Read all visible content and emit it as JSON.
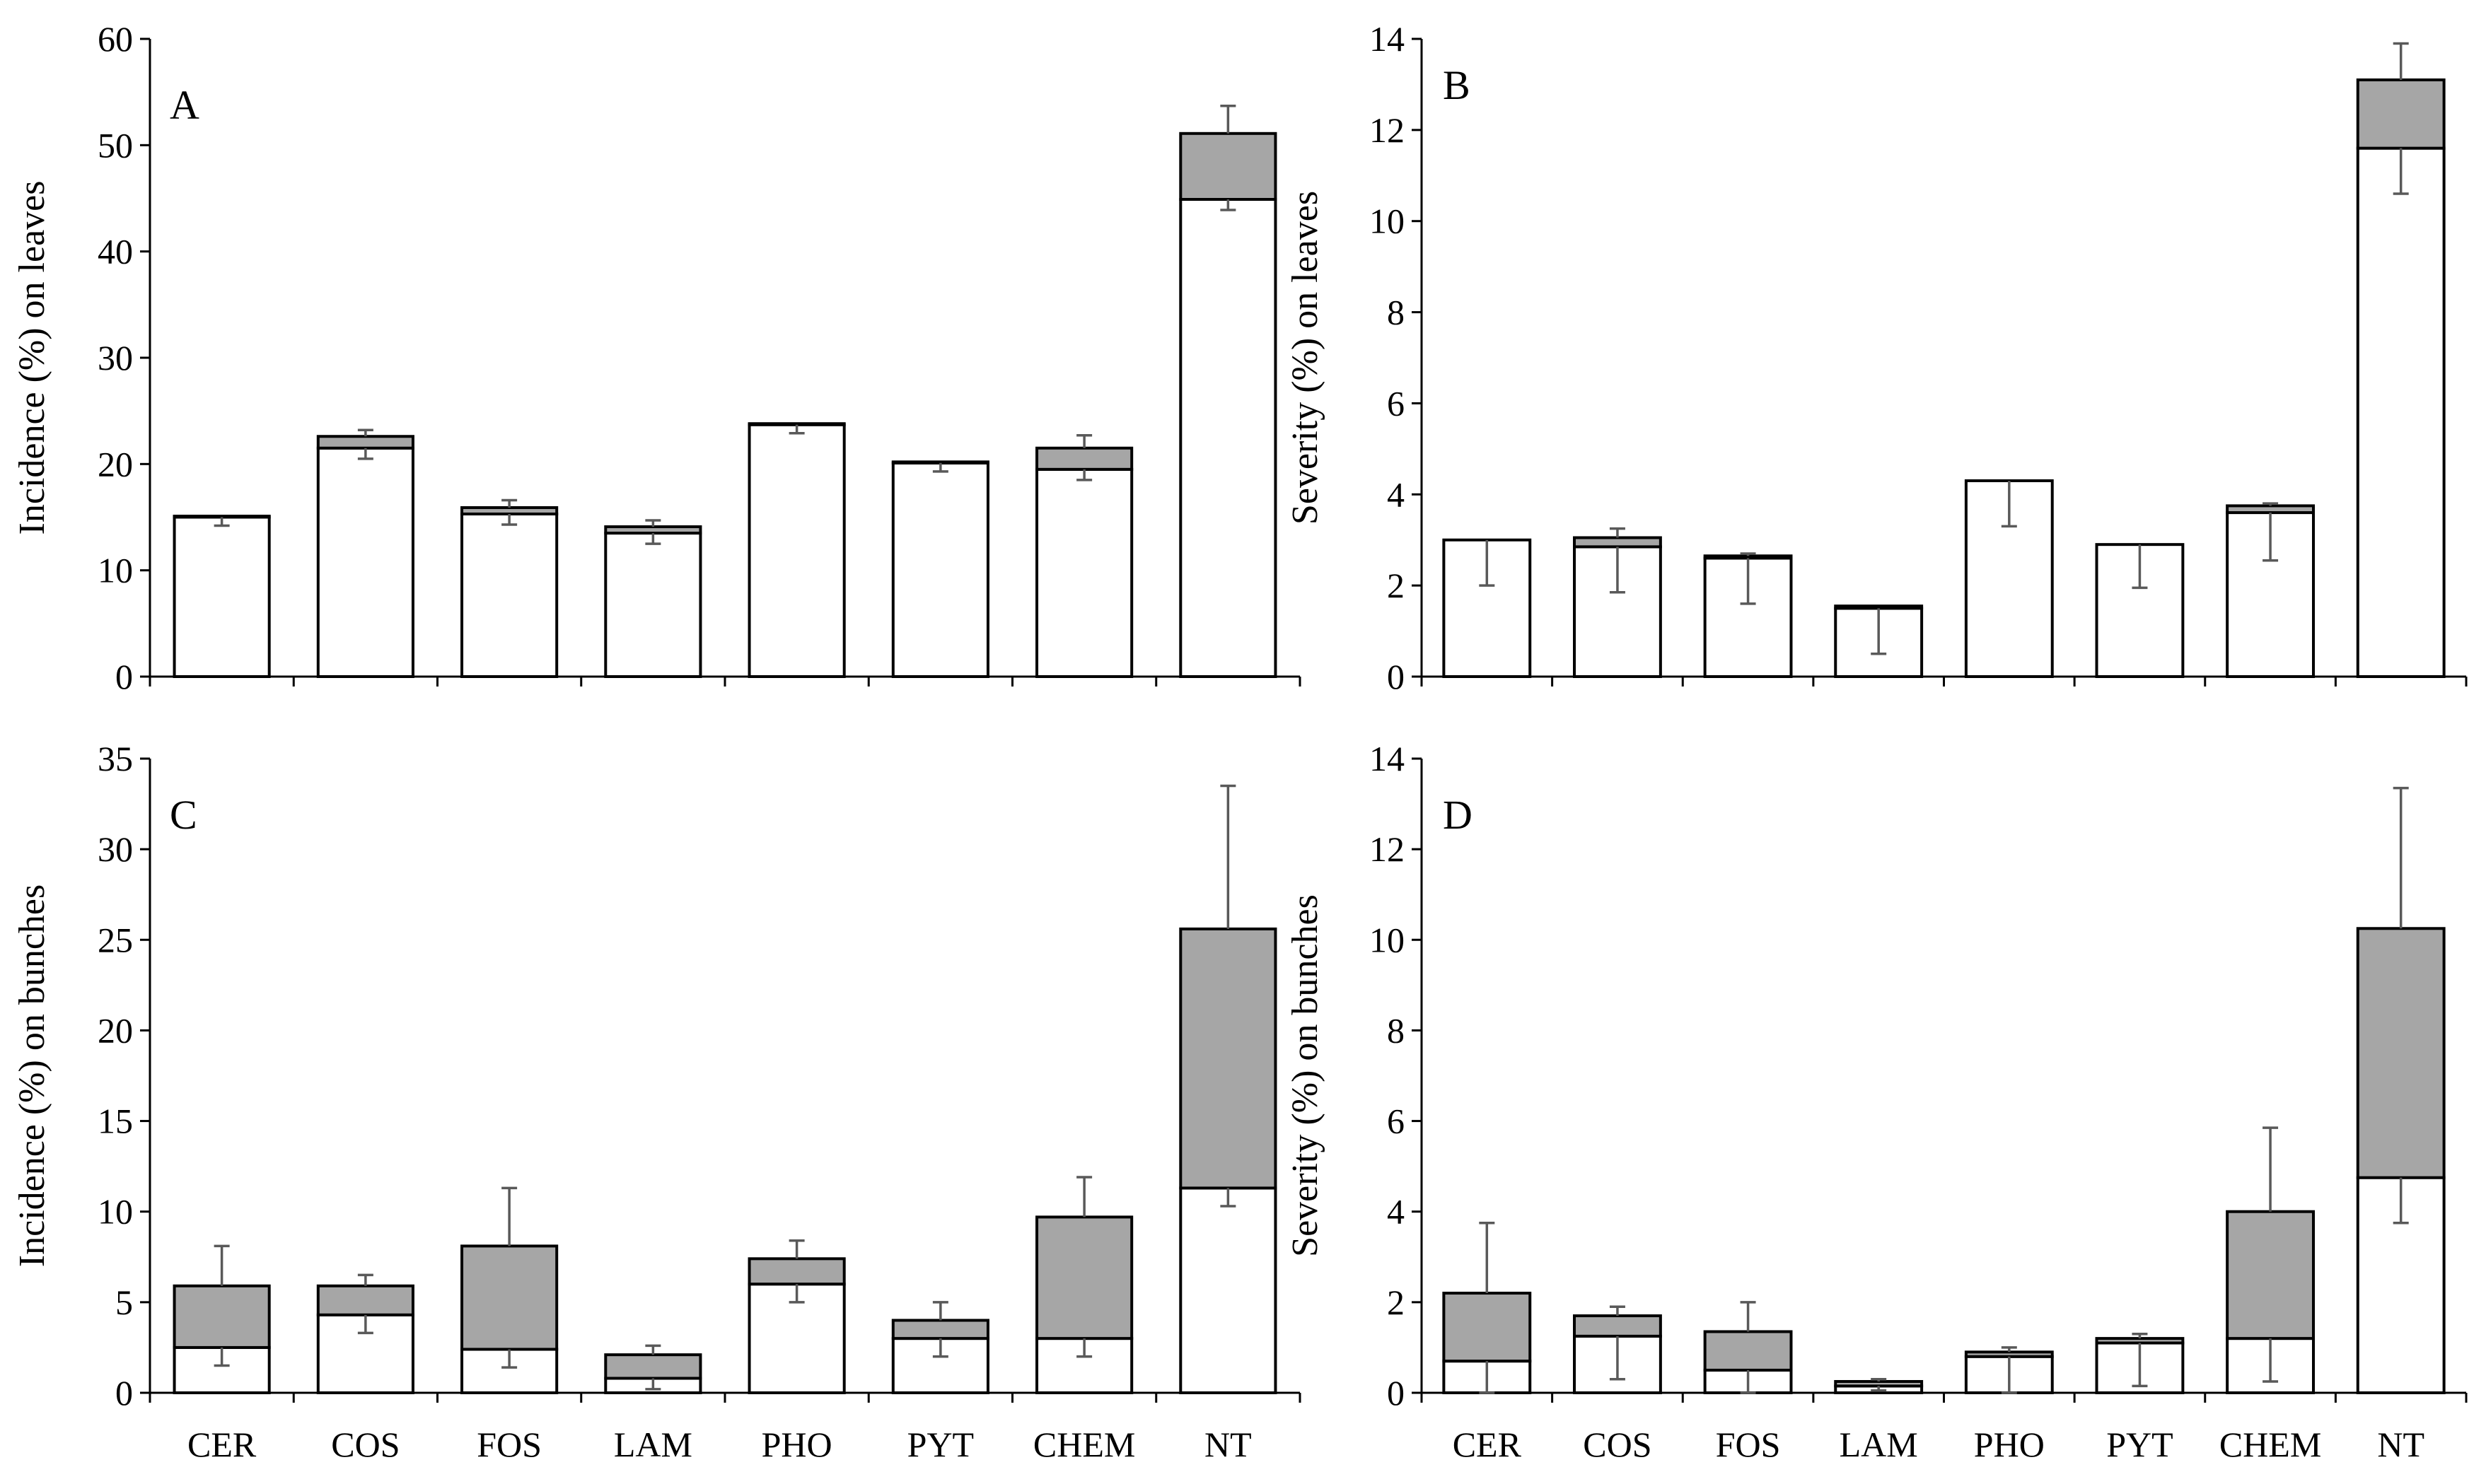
{
  "figure": {
    "colors": {
      "lower_segment": "#ffffff",
      "upper_segment": "#a6a6a6",
      "outline": "#000000",
      "error_bar": "#595959"
    },
    "categories": [
      "CER",
      "COS",
      "FOS",
      "LAM",
      "PHO",
      "PYT",
      "CHEM",
      "NT"
    ]
  },
  "chart_data": [
    {
      "type": "bar",
      "stacked": true,
      "panel": "A",
      "ylabel": "Incidence (%) on leaves",
      "ylim": [
        0,
        60
      ],
      "yticks": [
        0,
        10,
        20,
        30,
        40,
        50,
        60
      ],
      "categories": [
        "CER",
        "COS",
        "FOS",
        "LAM",
        "PHO",
        "PYT",
        "CHEM",
        "NT"
      ],
      "show_xtick_labels": false,
      "series": [
        {
          "name": "lower (white)",
          "values": [
            15.0,
            21.5,
            15.3,
            13.5,
            23.7,
            20.1,
            19.5,
            44.9
          ],
          "err_low": [
            0.8,
            1.0,
            1.0,
            1.0,
            0.8,
            0.8,
            1.0,
            1.0
          ],
          "err_high": [
            0,
            0,
            0,
            0,
            0,
            0,
            0,
            0
          ]
        },
        {
          "name": "upper (grey)",
          "values": [
            0.1,
            1.1,
            0.6,
            0.6,
            0.1,
            0.1,
            2.0,
            6.2
          ],
          "err_low": [
            0,
            0,
            0,
            0,
            0,
            0,
            0,
            0
          ],
          "err_high": [
            0,
            0.6,
            0.7,
            0.6,
            0,
            0,
            1.2,
            2.6
          ]
        }
      ]
    },
    {
      "type": "bar",
      "stacked": true,
      "panel": "B",
      "ylabel": "Severity (%) on leaves",
      "ylim": [
        0,
        14
      ],
      "yticks": [
        0,
        2,
        4,
        6,
        8,
        10,
        12,
        14
      ],
      "categories": [
        "CER",
        "COS",
        "FOS",
        "LAM",
        "PHO",
        "PYT",
        "CHEM",
        "NT"
      ],
      "show_xtick_labels": false,
      "series": [
        {
          "name": "lower (white)",
          "values": [
            3.0,
            2.85,
            2.6,
            1.5,
            4.3,
            2.9,
            3.6,
            11.6
          ],
          "err_low": [
            1.0,
            1.0,
            1.0,
            1.0,
            1.0,
            0.95,
            1.05,
            1.0
          ],
          "err_high": [
            0,
            0,
            0,
            0,
            0,
            0,
            0,
            0
          ]
        },
        {
          "name": "upper (grey)",
          "values": [
            0.0,
            0.2,
            0.05,
            0.05,
            0.0,
            0.0,
            0.15,
            1.5
          ],
          "err_low": [
            0,
            0,
            0,
            0,
            0,
            0,
            0,
            0
          ],
          "err_high": [
            0,
            0.2,
            0.05,
            0,
            0,
            0,
            0.05,
            0.8
          ]
        }
      ]
    },
    {
      "type": "bar",
      "stacked": true,
      "panel": "C",
      "ylabel": "Incidence (%) on bunches",
      "ylim": [
        0,
        35
      ],
      "yticks": [
        0,
        5,
        10,
        15,
        20,
        25,
        30,
        35
      ],
      "categories": [
        "CER",
        "COS",
        "FOS",
        "LAM",
        "PHO",
        "PYT",
        "CHEM",
        "NT"
      ],
      "show_xtick_labels": true,
      "series": [
        {
          "name": "lower (white)",
          "values": [
            2.5,
            4.3,
            2.4,
            0.8,
            6.0,
            3.0,
            3.0,
            11.3
          ],
          "err_low": [
            1.0,
            1.0,
            1.0,
            0.6,
            1.0,
            1.0,
            1.0,
            1.0
          ],
          "err_high": [
            0,
            0,
            0,
            0,
            0,
            0,
            0,
            0
          ]
        },
        {
          "name": "upper (grey)",
          "values": [
            3.4,
            1.6,
            5.7,
            1.3,
            1.4,
            1.0,
            6.7,
            14.3
          ],
          "err_low": [
            0,
            0,
            0,
            0,
            0,
            0,
            0,
            0
          ],
          "err_high": [
            2.2,
            0.6,
            3.2,
            0.5,
            1.0,
            1.0,
            2.2,
            7.9
          ]
        }
      ]
    },
    {
      "type": "bar",
      "stacked": true,
      "panel": "D",
      "ylabel": "Severity (%) on bunches",
      "ylim": [
        0,
        14
      ],
      "yticks": [
        0,
        2,
        4,
        6,
        8,
        10,
        12,
        14
      ],
      "categories": [
        "CER",
        "COS",
        "FOS",
        "LAM",
        "PHO",
        "PYT",
        "CHEM",
        "NT"
      ],
      "show_xtick_labels": true,
      "series": [
        {
          "name": "lower (white)",
          "values": [
            0.7,
            1.25,
            0.5,
            0.15,
            0.8,
            1.1,
            1.2,
            4.75
          ],
          "err_low": [
            0.7,
            0.95,
            0.5,
            0.1,
            0.8,
            0.95,
            0.95,
            1.0
          ],
          "err_high": [
            0,
            0,
            0,
            0,
            0,
            0,
            0,
            0
          ]
        },
        {
          "name": "upper (grey)",
          "values": [
            1.5,
            0.45,
            0.85,
            0.1,
            0.1,
            0.1,
            2.8,
            5.5
          ],
          "err_low": [
            0,
            0,
            0,
            0,
            0,
            0,
            0,
            0
          ],
          "err_high": [
            1.55,
            0.2,
            0.65,
            0.05,
            0.1,
            0.1,
            1.85,
            3.1
          ]
        }
      ]
    }
  ]
}
